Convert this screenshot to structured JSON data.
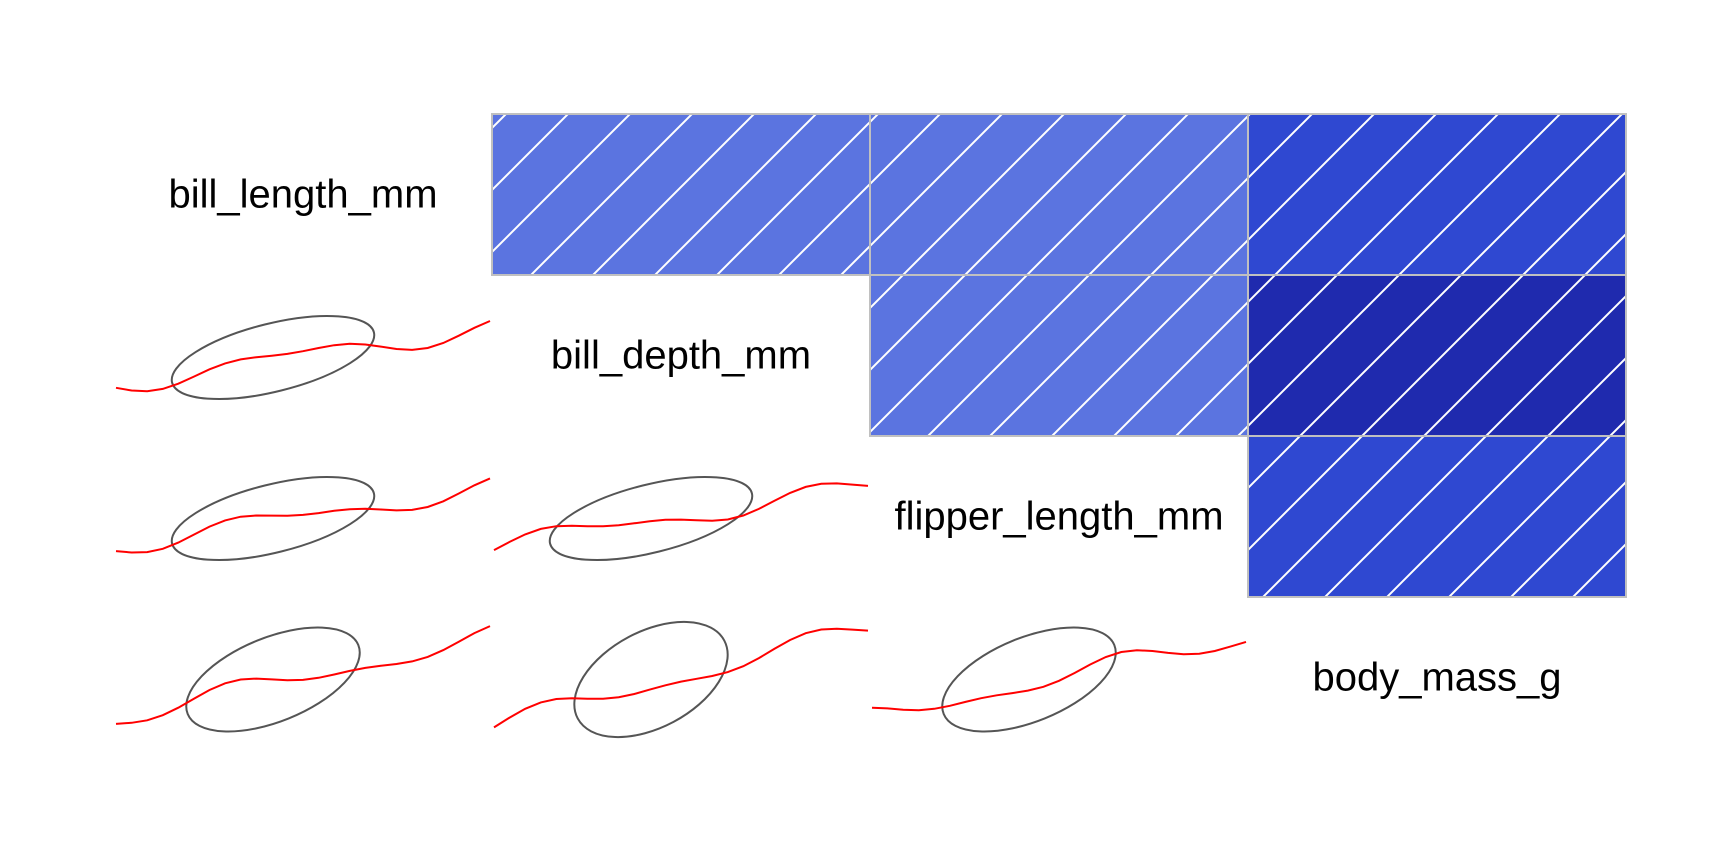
{
  "chart_data": {
    "type": "correlogram",
    "variables": [
      "bill_length_mm",
      "bill_depth_mm",
      "flipper_length_mm",
      "body_mass_g"
    ],
    "upper_panel": "shade",
    "lower_panel": "pts",
    "diag_panel": "variable-name",
    "correlations": [
      {
        "row": "bill_length_mm",
        "col": "bill_depth_mm",
        "r": 0.6
      },
      {
        "row": "bill_length_mm",
        "col": "flipper_length_mm",
        "r": 0.6
      },
      {
        "row": "bill_length_mm",
        "col": "body_mass_g",
        "r": 0.8
      },
      {
        "row": "bill_depth_mm",
        "col": "flipper_length_mm",
        "r": 0.6
      },
      {
        "row": "bill_depth_mm",
        "col": "body_mass_g",
        "r": 0.95
      },
      {
        "row": "flipper_length_mm",
        "col": "body_mass_g",
        "r": 0.8
      }
    ],
    "colors": {
      "positive_light": "#5b74e0",
      "positive_mid": "#2f48d1",
      "positive_dark": "#1f2aae",
      "ellipse": "#555555",
      "smooth_line": "#ff0000",
      "cell_border": "#c0c0c0",
      "hatch": "#ffffff"
    }
  }
}
